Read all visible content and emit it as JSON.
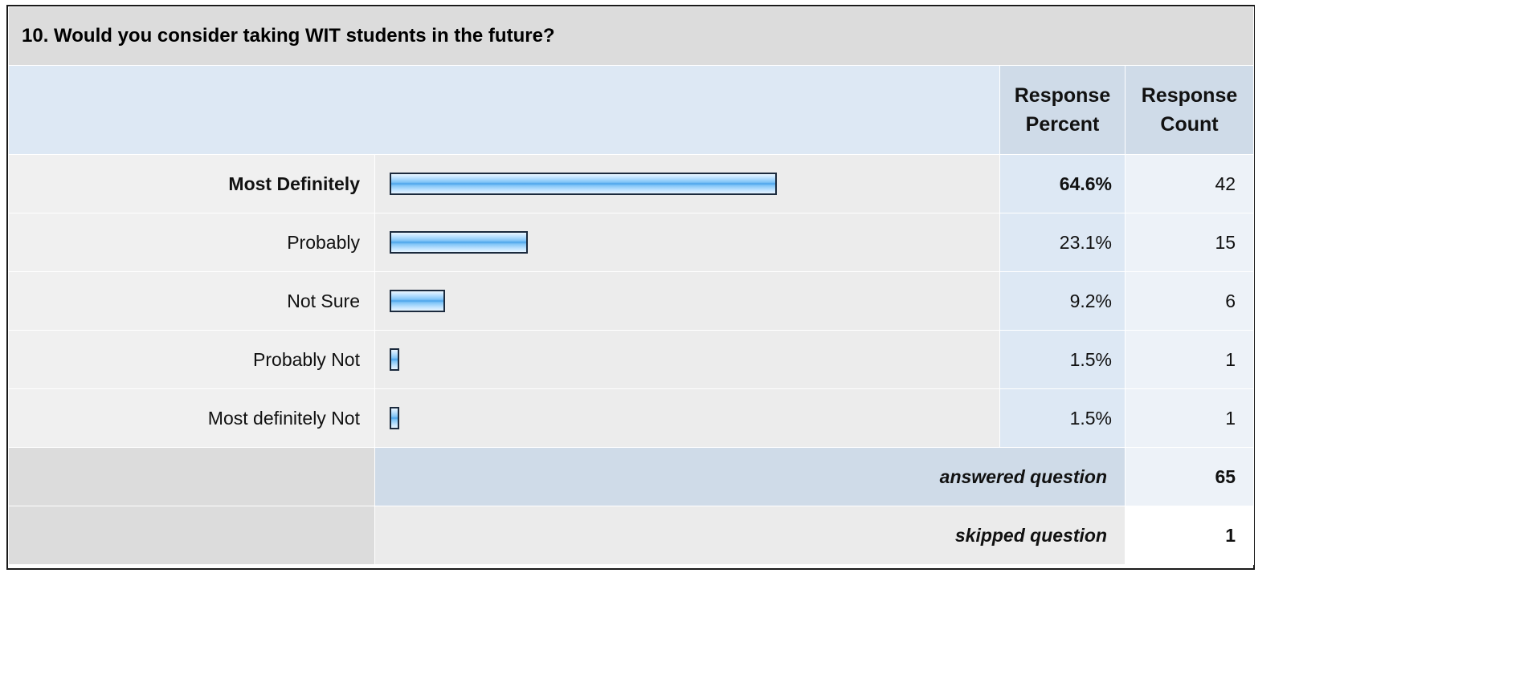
{
  "survey": {
    "question_title": "10. Would you consider taking WIT students in the future?",
    "col_percent_line1": "Response",
    "col_percent_line2": "Percent",
    "col_count_line1": "Response",
    "col_count_line2": "Count",
    "answered_label": "answered question",
    "answered_value": "65",
    "skipped_label": "skipped question",
    "skipped_value": "1"
  },
  "chart_data": {
    "type": "bar",
    "title": "10. Would you consider taking WIT students in the future?",
    "categories": [
      "Most Definitely",
      "Probably",
      "Not Sure",
      "Probably Not",
      "Most definitely Not"
    ],
    "values": [
      64.6,
      23.1,
      9.2,
      1.5,
      1.5
    ],
    "percent_labels": [
      "64.6%",
      "23.1%",
      "9.2%",
      "1.5%",
      "1.5%"
    ],
    "counts": [
      "42",
      "15",
      "6",
      "1",
      "1"
    ],
    "xlim": [
      0,
      100
    ],
    "colors": {
      "bar": "#7fc4f7",
      "bar_border": "#1b2a3d"
    }
  }
}
